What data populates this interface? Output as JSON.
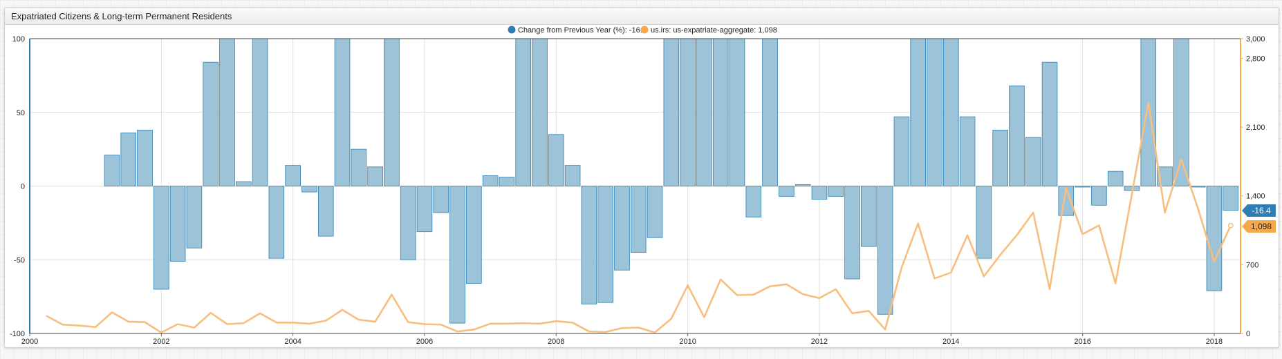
{
  "widget": {
    "title": "Expatriated Citizens & Long-term Permanent Residents"
  },
  "legend": [
    {
      "label": "Change from Previous Year (%): -16.4",
      "color": "#2f7fb4"
    },
    {
      "label": "us.irs: us-expatriate-aggregate: 1,098",
      "color": "#f7a84a"
    }
  ],
  "badges": {
    "bar_value": "-16.4",
    "line_value": "1,098",
    "bar_color": "#2f7fb4",
    "line_color": "#f7a84a"
  },
  "chart_data": {
    "type": "bar",
    "x_ticks": [
      "2000",
      "2002",
      "2004",
      "2006",
      "2008",
      "2010",
      "2012",
      "2014",
      "2016",
      "2018"
    ],
    "y_left": {
      "range": [
        -100,
        100
      ],
      "ticks": [
        "100",
        "50",
        "0",
        "-50",
        "-100"
      ]
    },
    "y_right": {
      "range": [
        0,
        3000
      ],
      "ticks": [
        "3,000",
        "2,800",
        "2,100",
        "1,400",
        "700",
        "0"
      ],
      "tick_values": [
        3000,
        2800,
        2100,
        1400,
        700,
        0
      ]
    },
    "series": [
      {
        "name": "Change from Previous Year (%)",
        "type": "bar",
        "axis": "left",
        "color": "#9cc3d8",
        "x": [
          2001.25,
          2001.5,
          2001.75,
          2002.0,
          2002.25,
          2002.5,
          2002.75,
          2003.0,
          2003.25,
          2003.5,
          2003.75,
          2004.0,
          2004.25,
          2004.5,
          2004.75,
          2005.0,
          2005.25,
          2005.5,
          2005.75,
          2006.0,
          2006.25,
          2006.5,
          2006.75,
          2007.0,
          2007.25,
          2007.5,
          2007.75,
          2008.0,
          2008.25,
          2008.5,
          2008.75,
          2009.0,
          2009.25,
          2009.5,
          2009.75,
          2010.0,
          2010.25,
          2010.5,
          2010.75,
          2011.0,
          2011.25,
          2011.5,
          2011.75,
          2012.0,
          2012.25,
          2012.5,
          2012.75,
          2013.0,
          2013.25,
          2013.5,
          2013.75,
          2014.0,
          2014.25,
          2014.5,
          2014.75,
          2015.0,
          2015.25,
          2015.5,
          2015.75,
          2016.0,
          2016.25,
          2016.5,
          2016.75,
          2017.0,
          2017.25,
          2017.5,
          2017.75,
          2018.0,
          2018.25
        ],
        "values": [
          21,
          36,
          38,
          -70,
          -51,
          -42,
          84,
          100,
          3,
          100,
          -49,
          14,
          -4,
          -34,
          100,
          25,
          13,
          100,
          -50,
          -31,
          -18,
          -93,
          -66,
          7,
          6,
          100,
          100,
          35,
          14,
          -80,
          -79,
          -57,
          -45,
          -35,
          100,
          100,
          100,
          100,
          100,
          -21,
          100,
          -7,
          1,
          -9,
          -7,
          -63,
          -41,
          -87,
          47,
          100,
          100,
          100,
          47,
          -49,
          38,
          68,
          33,
          84,
          -20,
          0,
          -13,
          10,
          -3,
          100,
          13,
          100,
          0,
          -71,
          -16.4
        ]
      },
      {
        "name": "us.irs: us-expatriate-aggregate",
        "type": "line",
        "axis": "right",
        "color": "#f7be7d",
        "x": [
          2000.25,
          2000.5,
          2000.75,
          2001.0,
          2001.25,
          2001.5,
          2001.75,
          2002.0,
          2002.25,
          2002.5,
          2002.75,
          2003.0,
          2003.25,
          2003.5,
          2003.75,
          2004.0,
          2004.25,
          2004.5,
          2004.75,
          2005.0,
          2005.25,
          2005.5,
          2005.75,
          2006.0,
          2006.25,
          2006.5,
          2006.75,
          2007.0,
          2007.25,
          2007.5,
          2007.75,
          2008.0,
          2008.25,
          2008.5,
          2008.75,
          2009.0,
          2009.25,
          2009.5,
          2009.75,
          2010.0,
          2010.25,
          2010.5,
          2010.75,
          2011.0,
          2011.25,
          2011.5,
          2011.75,
          2012.0,
          2012.25,
          2012.5,
          2012.75,
          2013.0,
          2013.25,
          2013.5,
          2013.75,
          2014.0,
          2014.25,
          2014.5,
          2014.75,
          2015.0,
          2015.25,
          2015.5,
          2015.75,
          2016.0,
          2016.25,
          2016.5,
          2016.75,
          2017.0,
          2017.25,
          2017.5,
          2017.75,
          2018.0,
          2018.25
        ],
        "values": [
          180,
          90,
          80,
          65,
          215,
          120,
          115,
          10,
          95,
          60,
          210,
          95,
          105,
          205,
          110,
          110,
          100,
          130,
          240,
          140,
          120,
          395,
          115,
          95,
          90,
          20,
          40,
          100,
          100,
          105,
          100,
          125,
          110,
          20,
          15,
          55,
          60,
          10,
          150,
          490,
          165,
          550,
          390,
          395,
          480,
          500,
          400,
          360,
          450,
          205,
          230,
          40,
          670,
          1120,
          560,
          620,
          1000,
          580,
          800,
          1000,
          1230,
          450,
          1480,
          1010,
          1100,
          510,
          1420,
          2350,
          1230,
          1770,
          1280,
          730,
          1098
        ]
      }
    ]
  }
}
